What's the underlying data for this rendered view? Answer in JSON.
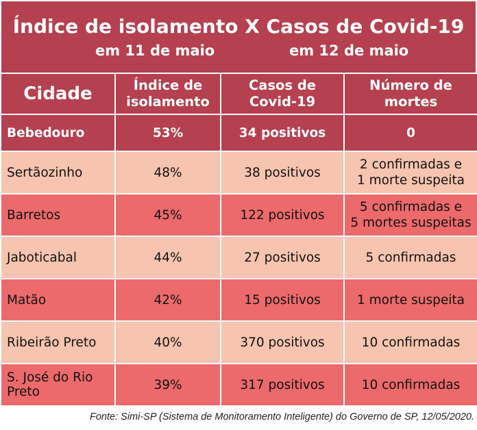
{
  "title": {
    "main": "Índice de isolamento X Casos de Covid-19",
    "sub_left": "em 11 de maio",
    "sub_right": "em 12 de maio"
  },
  "headers": {
    "city": "Cidade",
    "isolation": [
      "Índice de",
      "isolamento"
    ],
    "cases": [
      "Casos de",
      "Covid-19"
    ],
    "deaths": [
      "Número de",
      "mortes"
    ]
  },
  "rows": [
    {
      "city": "Bebedouro",
      "isolation": "53%",
      "cases": "34 positivos",
      "deaths": [
        "0"
      ]
    },
    {
      "city": "Sertãozinho",
      "isolation": "48%",
      "cases": "38 positivos",
      "deaths": [
        "2 confirmadas e",
        "1 morte suspeita"
      ]
    },
    {
      "city": "Barretos",
      "isolation": "45%",
      "cases": "122 positivos",
      "deaths": [
        "5 confirmadas e",
        "5 mortes suspeitas"
      ]
    },
    {
      "city": "Jaboticabal",
      "isolation": "44%",
      "cases": "27 positivos",
      "deaths": [
        "5 confirmadas"
      ]
    },
    {
      "city": "Matão",
      "isolation": "42%",
      "cases": "15 positivos",
      "deaths": [
        "1 morte suspeita"
      ]
    },
    {
      "city": "Ribeirão Preto",
      "isolation": "40%",
      "cases": "370 positivos",
      "deaths": [
        "10 confirmadas"
      ]
    },
    {
      "city": "S. José do Rio Preto",
      "isolation": "39%",
      "cases": "317 positivos",
      "deaths": [
        "10 confirmadas"
      ]
    }
  ],
  "footer": "Fonte: Simi-SP (Sistema de Monitoramento Inteligente) do Governo de SP, 12/05/2020.",
  "colors": {
    "header": "#b5404f",
    "row_light": "#f7c4af",
    "row_dark": "#ec6a6b"
  }
}
